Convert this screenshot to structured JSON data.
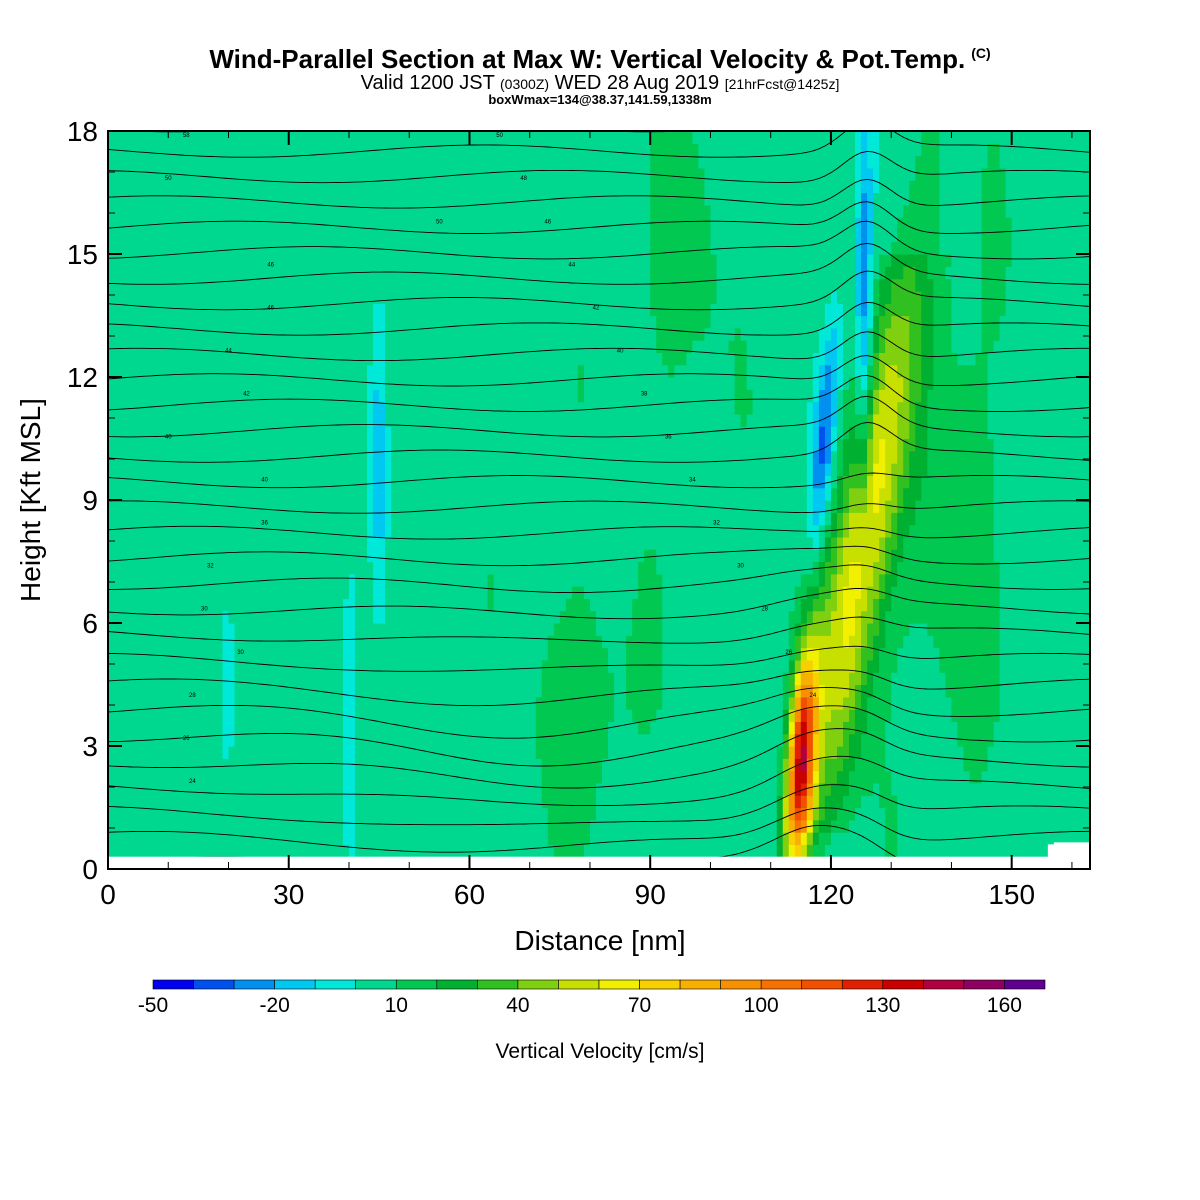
{
  "title": {
    "main": "Wind-Parallel Section at Max W: Vertical Velocity & Pot.Temp.",
    "copyright": "(C)",
    "valid_prefix": "Valid 1200 JST",
    "valid_utc": "(0300Z)",
    "valid_date": "WED 28 Aug 2019",
    "forecast": "[21hrFcst@1425z]",
    "boxmax": "boxWmax=134@38.37,141.59,1338m"
  },
  "chart_data": {
    "type": "heatmap",
    "xlabel": "Distance [nm]",
    "ylabel": "Height [Kft MSL]",
    "xlim": [
      0,
      163
    ],
    "ylim": [
      0,
      18
    ],
    "x_ticks": [
      "0",
      "30",
      "60",
      "90",
      "120",
      "150"
    ],
    "y_ticks": [
      "0",
      "3",
      "6",
      "9",
      "12",
      "15",
      "18"
    ],
    "colorbar": {
      "label": "Vertical Velocity [cm/s]",
      "tick_labels": [
        "-50",
        "-20",
        "10",
        "40",
        "70",
        "100",
        "130",
        "160"
      ],
      "levels": [
        -50,
        -40,
        -30,
        -20,
        -10,
        0,
        10,
        20,
        30,
        40,
        50,
        60,
        70,
        80,
        90,
        100,
        110,
        120,
        130,
        140,
        150,
        160,
        170
      ],
      "colors": [
        "#0000f0",
        "#0050f0",
        "#0090f0",
        "#00c8f0",
        "#00e8d8",
        "#00d890",
        "#00c850",
        "#00b030",
        "#30c020",
        "#80d010",
        "#c8e000",
        "#f0f000",
        "#f8d000",
        "#f8b000",
        "#f89000",
        "#f87000",
        "#f05000",
        "#e02000",
        "#c80000",
        "#b00040",
        "#900060",
        "#600090"
      ]
    },
    "features": [
      {
        "name": "updraft core",
        "x": 114,
        "y": [
          0.5,
          5
        ],
        "w_max": 134
      },
      {
        "name": "updraft plume",
        "x": [
          118,
          133
        ],
        "y": [
          2,
          14
        ],
        "w": [
          50,
          90
        ]
      },
      {
        "name": "downdraft",
        "x": [
          117,
          126
        ],
        "y": [
          9,
          18
        ],
        "w": [
          -40,
          -20
        ]
      }
    ],
    "theta_contour_labels": [
      "58",
      "50",
      "50",
      "46",
      "46",
      "44",
      "42",
      "40",
      "40",
      "36",
      "32",
      "30",
      "30",
      "28",
      "26",
      "24",
      "50",
      "48",
      "46",
      "44",
      "42",
      "40",
      "38",
      "36",
      "34",
      "32",
      "30",
      "28",
      "26",
      "24"
    ]
  }
}
